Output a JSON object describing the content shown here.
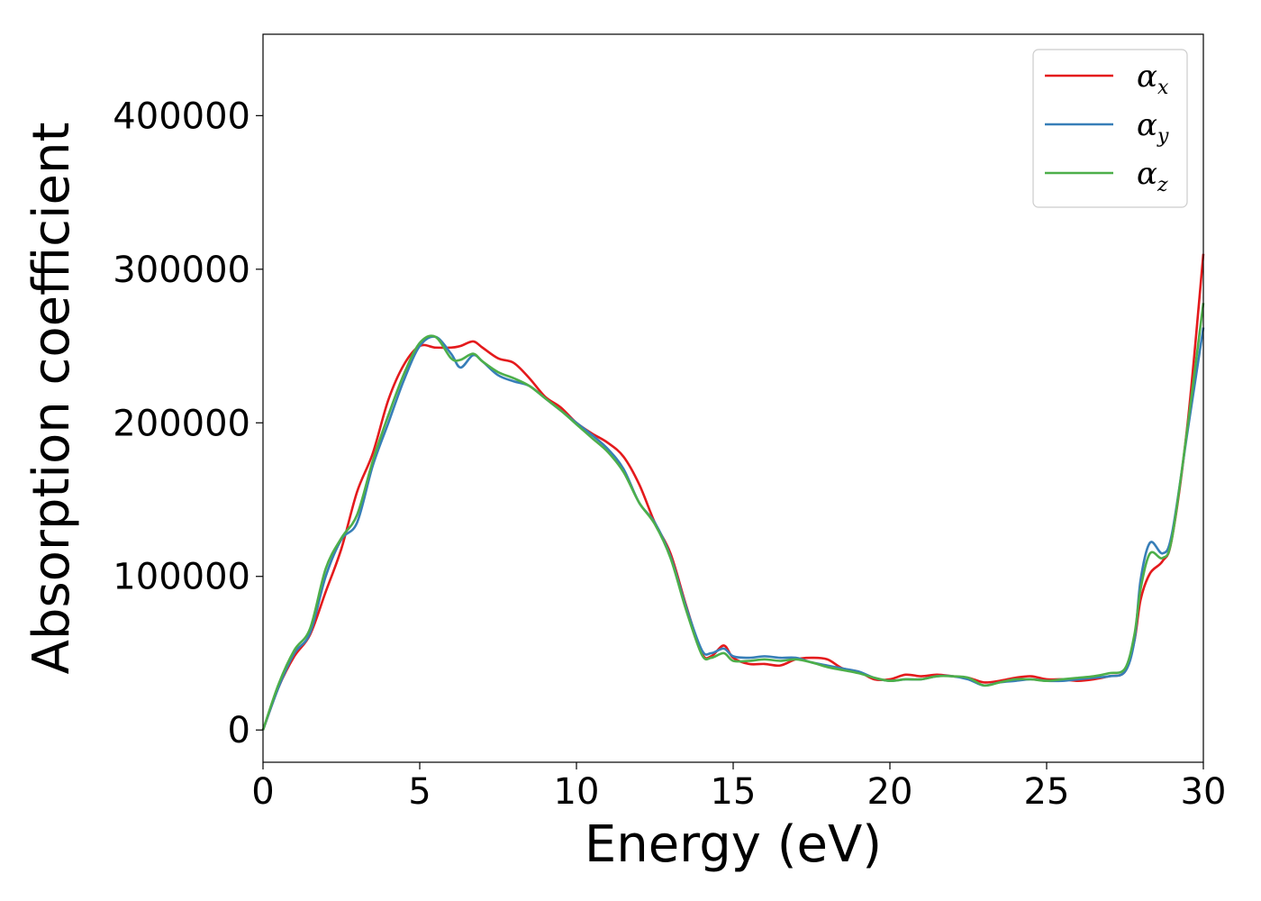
{
  "chart_data": {
    "type": "line",
    "title": "",
    "xlabel": "Energy (eV)",
    "ylabel": "Absorption coefficient",
    "xlim": [
      0,
      30
    ],
    "ylim": [
      -21000,
      453000
    ],
    "xticks": [
      0,
      5,
      10,
      15,
      20,
      25,
      30
    ],
    "xtick_labels": [
      "0",
      "5",
      "10",
      "15",
      "20",
      "25",
      "30"
    ],
    "yticks": [
      0,
      100000,
      200000,
      300000,
      400000
    ],
    "ytick_labels": [
      "0",
      "100000",
      "200000",
      "300000",
      "400000"
    ],
    "grid": false,
    "legend_position": "top-right",
    "series": [
      {
        "name": "α_x",
        "legend_base": "α",
        "legend_sub": "x",
        "color": "#e41a1c",
        "points": [
          [
            0,
            0
          ],
          [
            0.5,
            28000
          ],
          [
            1,
            48000
          ],
          [
            1.5,
            62000
          ],
          [
            2,
            90000
          ],
          [
            2.5,
            118000
          ],
          [
            3,
            155000
          ],
          [
            3.5,
            180000
          ],
          [
            4,
            215000
          ],
          [
            4.5,
            238000
          ],
          [
            5,
            250000
          ],
          [
            5.5,
            249000
          ],
          [
            6,
            249000
          ],
          [
            6.3,
            250000
          ],
          [
            6.7,
            253000
          ],
          [
            7,
            249000
          ],
          [
            7.5,
            242000
          ],
          [
            8,
            239000
          ],
          [
            8.5,
            229000
          ],
          [
            9,
            217000
          ],
          [
            9.5,
            210000
          ],
          [
            10,
            200000
          ],
          [
            10.5,
            193000
          ],
          [
            11,
            187000
          ],
          [
            11.5,
            178000
          ],
          [
            12,
            160000
          ],
          [
            12.5,
            135000
          ],
          [
            13,
            115000
          ],
          [
            13.5,
            81000
          ],
          [
            14,
            50000
          ],
          [
            14.3,
            48000
          ],
          [
            14.7,
            55000
          ],
          [
            15,
            47000
          ],
          [
            15.5,
            43000
          ],
          [
            16,
            43000
          ],
          [
            16.5,
            42000
          ],
          [
            17,
            46000
          ],
          [
            17.5,
            47000
          ],
          [
            18,
            46000
          ],
          [
            18.5,
            40000
          ],
          [
            19,
            38000
          ],
          [
            19.5,
            33000
          ],
          [
            20,
            33000
          ],
          [
            20.5,
            36000
          ],
          [
            21,
            35000
          ],
          [
            21.5,
            36000
          ],
          [
            22,
            35000
          ],
          [
            22.5,
            34000
          ],
          [
            23,
            31000
          ],
          [
            23.5,
            32000
          ],
          [
            24,
            34000
          ],
          [
            24.5,
            35000
          ],
          [
            25,
            33000
          ],
          [
            25.5,
            33000
          ],
          [
            26,
            32000
          ],
          [
            26.5,
            33000
          ],
          [
            27,
            35000
          ],
          [
            27.5,
            38000
          ],
          [
            27.8,
            58000
          ],
          [
            28,
            85000
          ],
          [
            28.3,
            102000
          ],
          [
            28.7,
            110000
          ],
          [
            29,
            125000
          ],
          [
            29.5,
            200000
          ],
          [
            30,
            310000
          ]
        ]
      },
      {
        "name": "α_y",
        "legend_base": "α",
        "legend_sub": "y",
        "color": "#377eb8",
        "points": [
          [
            0,
            0
          ],
          [
            0.5,
            28000
          ],
          [
            1,
            50000
          ],
          [
            1.5,
            63000
          ],
          [
            2,
            100000
          ],
          [
            2.5,
            124000
          ],
          [
            3,
            135000
          ],
          [
            3.5,
            172000
          ],
          [
            4,
            200000
          ],
          [
            4.5,
            228000
          ],
          [
            5,
            250000
          ],
          [
            5.5,
            256000
          ],
          [
            6,
            245000
          ],
          [
            6.3,
            236000
          ],
          [
            6.7,
            244000
          ],
          [
            7,
            240000
          ],
          [
            7.5,
            231000
          ],
          [
            8,
            227000
          ],
          [
            8.5,
            224000
          ],
          [
            9,
            216000
          ],
          [
            9.5,
            208000
          ],
          [
            10,
            200000
          ],
          [
            10.5,
            192000
          ],
          [
            11,
            183000
          ],
          [
            11.5,
            170000
          ],
          [
            12,
            148000
          ],
          [
            12.5,
            135000
          ],
          [
            13,
            113000
          ],
          [
            13.5,
            80000
          ],
          [
            14,
            52000
          ],
          [
            14.3,
            50000
          ],
          [
            14.7,
            53000
          ],
          [
            15,
            48000
          ],
          [
            15.5,
            47000
          ],
          [
            16,
            48000
          ],
          [
            16.5,
            47000
          ],
          [
            17,
            47000
          ],
          [
            17.5,
            44000
          ],
          [
            18,
            42000
          ],
          [
            18.5,
            40000
          ],
          [
            19,
            38000
          ],
          [
            19.5,
            34000
          ],
          [
            20,
            32000
          ],
          [
            20.5,
            33000
          ],
          [
            21,
            33000
          ],
          [
            21.5,
            35000
          ],
          [
            22,
            35000
          ],
          [
            22.5,
            33000
          ],
          [
            23,
            29000
          ],
          [
            23.5,
            31000
          ],
          [
            24,
            32000
          ],
          [
            24.5,
            33000
          ],
          [
            25,
            32000
          ],
          [
            25.5,
            32000
          ],
          [
            26,
            33000
          ],
          [
            26.5,
            34000
          ],
          [
            27,
            35000
          ],
          [
            27.5,
            38000
          ],
          [
            27.8,
            58000
          ],
          [
            28,
            98000
          ],
          [
            28.3,
            122000
          ],
          [
            28.7,
            115000
          ],
          [
            29,
            128000
          ],
          [
            29.5,
            195000
          ],
          [
            30,
            262000
          ]
        ]
      },
      {
        "name": "α_z",
        "legend_base": "α",
        "legend_sub": "z",
        "color": "#4daf4a",
        "points": [
          [
            0,
            0
          ],
          [
            0.5,
            30000
          ],
          [
            1,
            52000
          ],
          [
            1.5,
            66000
          ],
          [
            2,
            105000
          ],
          [
            2.5,
            125000
          ],
          [
            3,
            140000
          ],
          [
            3.5,
            175000
          ],
          [
            4,
            205000
          ],
          [
            4.5,
            232000
          ],
          [
            5,
            252000
          ],
          [
            5.5,
            256000
          ],
          [
            6,
            242000
          ],
          [
            6.3,
            241000
          ],
          [
            6.7,
            245000
          ],
          [
            7,
            240000
          ],
          [
            7.5,
            233000
          ],
          [
            8,
            229000
          ],
          [
            8.5,
            224000
          ],
          [
            9,
            216000
          ],
          [
            9.5,
            208000
          ],
          [
            10,
            199000
          ],
          [
            10.5,
            190000
          ],
          [
            11,
            181000
          ],
          [
            11.5,
            168000
          ],
          [
            12,
            148000
          ],
          [
            12.5,
            134000
          ],
          [
            13,
            112000
          ],
          [
            13.5,
            78000
          ],
          [
            14,
            49000
          ],
          [
            14.3,
            47000
          ],
          [
            14.7,
            50000
          ],
          [
            15,
            45000
          ],
          [
            15.5,
            45000
          ],
          [
            16,
            46000
          ],
          [
            16.5,
            45000
          ],
          [
            17,
            46000
          ],
          [
            17.5,
            44000
          ],
          [
            18,
            41000
          ],
          [
            18.5,
            39000
          ],
          [
            19,
            37000
          ],
          [
            19.5,
            34000
          ],
          [
            20,
            32000
          ],
          [
            20.5,
            33000
          ],
          [
            21,
            33000
          ],
          [
            21.5,
            35000
          ],
          [
            22,
            35000
          ],
          [
            22.5,
            34000
          ],
          [
            23,
            29000
          ],
          [
            23.5,
            31000
          ],
          [
            24,
            33000
          ],
          [
            24.5,
            33000
          ],
          [
            25,
            32000
          ],
          [
            25.5,
            33000
          ],
          [
            26,
            34000
          ],
          [
            26.5,
            35000
          ],
          [
            27,
            37000
          ],
          [
            27.5,
            40000
          ],
          [
            27.8,
            62000
          ],
          [
            28,
            92000
          ],
          [
            28.3,
            115000
          ],
          [
            28.7,
            112000
          ],
          [
            29,
            125000
          ],
          [
            29.5,
            198000
          ],
          [
            30,
            278000
          ]
        ]
      }
    ]
  }
}
